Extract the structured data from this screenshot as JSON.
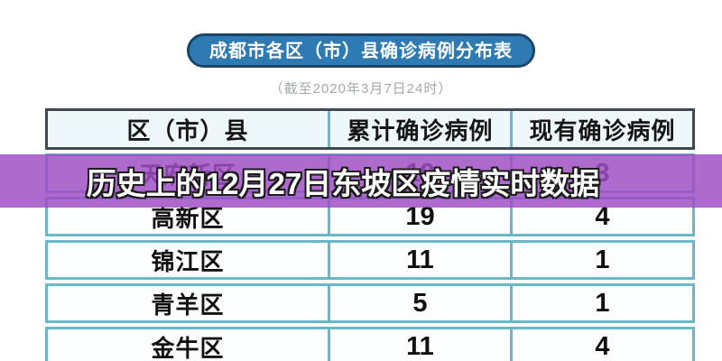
{
  "banner": {
    "title": "成都市各区（市）县确诊病例分布表",
    "bg_color": "#2e7ab2",
    "border_color": "#1c4668",
    "text_color": "#ffffff"
  },
  "subtitle": {
    "text": "（截至2020年3月7日24时）",
    "color": "#a2a8ac"
  },
  "table": {
    "columns": [
      "区（市）县",
      "累计确诊病例",
      "现有确诊病例"
    ],
    "rows": [
      {
        "district": "天府新区",
        "cumulative": "19",
        "current": "3"
      },
      {
        "district": "高新区",
        "cumulative": "19",
        "current": "4"
      },
      {
        "district": "锦江区",
        "cumulative": "11",
        "current": "1"
      },
      {
        "district": "青羊区",
        "cumulative": "5",
        "current": "1"
      },
      {
        "district": "金牛区",
        "cumulative": "11",
        "current": "4"
      }
    ],
    "header_border_color": "#3e4a50",
    "grid_border_color": "#69b7cb"
  },
  "overlay": {
    "text": "历史上的12月27日东坡区疫情实时数据",
    "band_color": "#a04dc4",
    "text_color": "#ffffff"
  },
  "chart_data": {
    "type": "table",
    "title": "成都市各区（市）县确诊病例分布表",
    "subtitle": "（截至2020年3月7日24时）",
    "columns": [
      "区（市）县",
      "累计确诊病例",
      "现有确诊病例"
    ],
    "rows": [
      [
        "天府新区",
        19,
        3
      ],
      [
        "高新区",
        19,
        4
      ],
      [
        "锦江区",
        11,
        1
      ],
      [
        "青羊区",
        5,
        1
      ],
      [
        "金牛区",
        11,
        4
      ]
    ],
    "annotation": "历史上的12月27日东坡区疫情实时数据",
    "notes": "第一行数据行被半透明紫色横幅遮挡；最后一行（金牛区）在图像底部被裁切"
  }
}
